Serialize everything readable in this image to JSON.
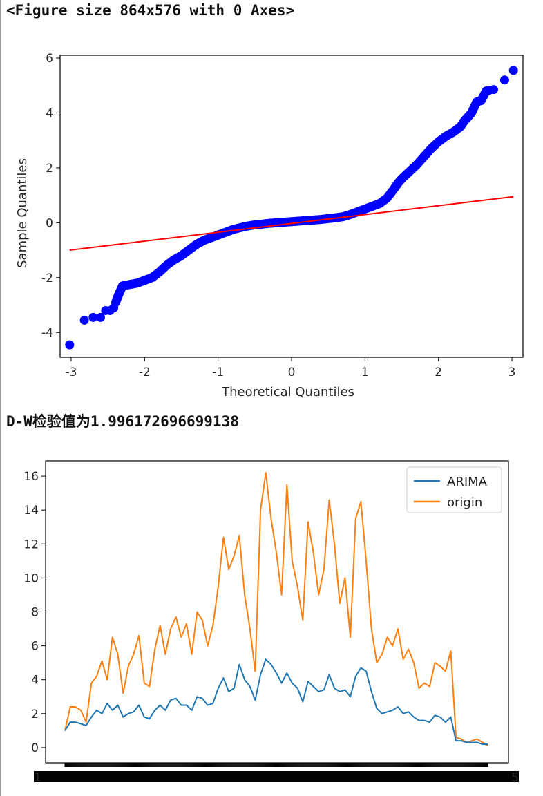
{
  "output": {
    "figure_text": "<Figure size 864x576 with 0 Axes>",
    "dw_text": "D-W检验值为1.996172696699138"
  },
  "colors": {
    "qq_points": "#0000ff",
    "qq_line": "#ff0000",
    "arima": "#1f77b4",
    "origin": "#ff7f0e",
    "axes": "#000000"
  },
  "chart_data": [
    {
      "type": "scatter",
      "title": "",
      "xlabel": "Theoretical Quantiles",
      "ylabel": "Sample Quantiles",
      "xlim": [
        -3.15,
        3.15
      ],
      "ylim": [
        -4.9,
        6.1
      ],
      "xticks": [
        -3,
        -2,
        -1,
        0,
        1,
        2,
        3
      ],
      "yticks": [
        -4,
        -2,
        0,
        2,
        4,
        6
      ],
      "xtick_labels": [
        "-3",
        "-2",
        "-1",
        "0",
        "1",
        "2",
        "3"
      ],
      "ytick_labels": [
        "-4",
        "-2",
        "0",
        "2",
        "4",
        "6"
      ],
      "reference_line": {
        "x": [
          -3.02,
          3.02
        ],
        "y": [
          -1.0,
          0.95
        ]
      },
      "series": [
        {
          "x": [
            -3.02,
            -2.82,
            -2.7,
            -2.6,
            -2.53,
            -2.47,
            -2.42,
            -2.38,
            -2.35,
            -2.3,
            -2.2,
            -2.1,
            -2.0,
            -1.9,
            -1.8,
            -1.7,
            -1.6,
            -1.5,
            -1.4,
            -1.3,
            -1.2,
            -1.1,
            -1.0,
            -0.9,
            -0.8,
            -0.7,
            -0.6,
            -0.5,
            -0.4,
            -0.3,
            -0.2,
            -0.1,
            0.0,
            0.1,
            0.2,
            0.3,
            0.4,
            0.5,
            0.6,
            0.7,
            0.8,
            0.9,
            1.0,
            1.1,
            1.2,
            1.3,
            1.4,
            1.45,
            1.5,
            1.6,
            1.7,
            1.8,
            1.9,
            2.0,
            2.1,
            2.2,
            2.3,
            2.35,
            2.4,
            2.45,
            2.52,
            2.58,
            2.65,
            2.75,
            2.9,
            3.02
          ],
          "y": [
            -4.45,
            -3.55,
            -3.45,
            -3.45,
            -3.2,
            -3.2,
            -3.1,
            -2.8,
            -2.6,
            -2.3,
            -2.25,
            -2.2,
            -2.1,
            -2.0,
            -1.8,
            -1.55,
            -1.35,
            -1.2,
            -1.0,
            -0.8,
            -0.65,
            -0.55,
            -0.45,
            -0.35,
            -0.25,
            -0.18,
            -0.12,
            -0.08,
            -0.05,
            -0.02,
            0.0,
            0.02,
            0.04,
            0.06,
            0.08,
            0.1,
            0.12,
            0.15,
            0.18,
            0.22,
            0.3,
            0.4,
            0.5,
            0.6,
            0.7,
            0.9,
            1.25,
            1.45,
            1.6,
            1.85,
            2.1,
            2.4,
            2.7,
            2.95,
            3.15,
            3.3,
            3.5,
            3.7,
            3.85,
            4.0,
            4.4,
            4.45,
            4.8,
            4.85,
            5.2,
            5.55
          ]
        }
      ]
    },
    {
      "type": "line",
      "title": "",
      "xlabel": "",
      "ylabel": "",
      "ylim": [
        -0.9,
        16.9
      ],
      "yticks": [
        0,
        2,
        4,
        6,
        8,
        10,
        12,
        14,
        16
      ],
      "ytick_labels": [
        "0",
        "2",
        "4",
        "6",
        "8",
        "10",
        "12",
        "14",
        "16"
      ],
      "legend_position": "top-right",
      "xtick_label_text": "1",
      "xtick_label_end_text": "5",
      "x_count": 610,
      "series": [
        {
          "name": "ARIMA",
          "values": [
            1.0,
            1.5,
            1.5,
            1.4,
            1.3,
            1.8,
            2.2,
            2.0,
            2.6,
            2.2,
            2.5,
            1.8,
            2.0,
            2.1,
            2.5,
            1.8,
            1.7,
            2.2,
            2.5,
            2.2,
            2.8,
            2.9,
            2.5,
            2.5,
            2.2,
            3.0,
            2.9,
            2.5,
            2.6,
            3.5,
            4.1,
            3.3,
            3.5,
            4.9,
            4.0,
            3.6,
            2.8,
            4.3,
            5.2,
            4.9,
            4.4,
            3.8,
            4.4,
            3.8,
            3.5,
            2.7,
            3.9,
            3.6,
            3.3,
            3.4,
            4.3,
            3.5,
            3.3,
            3.4,
            3.0,
            4.2,
            4.7,
            4.5,
            3.3,
            2.3,
            2.0,
            2.1,
            2.2,
            2.4,
            2.0,
            2.1,
            1.8,
            1.6,
            1.6,
            1.5,
            1.9,
            1.8,
            1.5,
            1.8,
            0.4,
            0.4,
            0.3,
            0.3,
            0.3,
            0.2,
            0.2
          ],
          "color": "#1f77b4"
        },
        {
          "name": "origin",
          "values": [
            1.0,
            2.4,
            2.4,
            2.2,
            1.5,
            3.8,
            4.2,
            5.1,
            4.0,
            6.5,
            5.5,
            3.2,
            4.8,
            5.5,
            6.6,
            3.8,
            3.6,
            5.8,
            7.2,
            5.5,
            7.0,
            7.7,
            6.5,
            7.3,
            5.5,
            8.0,
            7.5,
            6.0,
            7.2,
            9.5,
            12.4,
            10.5,
            11.3,
            12.5,
            9.0,
            7.0,
            4.5,
            14.0,
            16.2,
            13.5,
            11.5,
            9.0,
            15.5,
            11.0,
            9.5,
            7.5,
            13.3,
            11.5,
            9.0,
            10.5,
            14.6,
            12.0,
            8.5,
            10.0,
            6.5,
            13.5,
            14.5,
            11.0,
            7.0,
            5.0,
            5.5,
            6.5,
            6.0,
            7.0,
            5.2,
            5.8,
            5.0,
            3.5,
            3.8,
            3.6,
            5.0,
            4.8,
            4.5,
            5.7,
            0.6,
            0.5,
            0.3,
            0.4,
            0.5,
            0.3,
            0.1
          ],
          "color": "#ff7f0e"
        }
      ]
    }
  ]
}
